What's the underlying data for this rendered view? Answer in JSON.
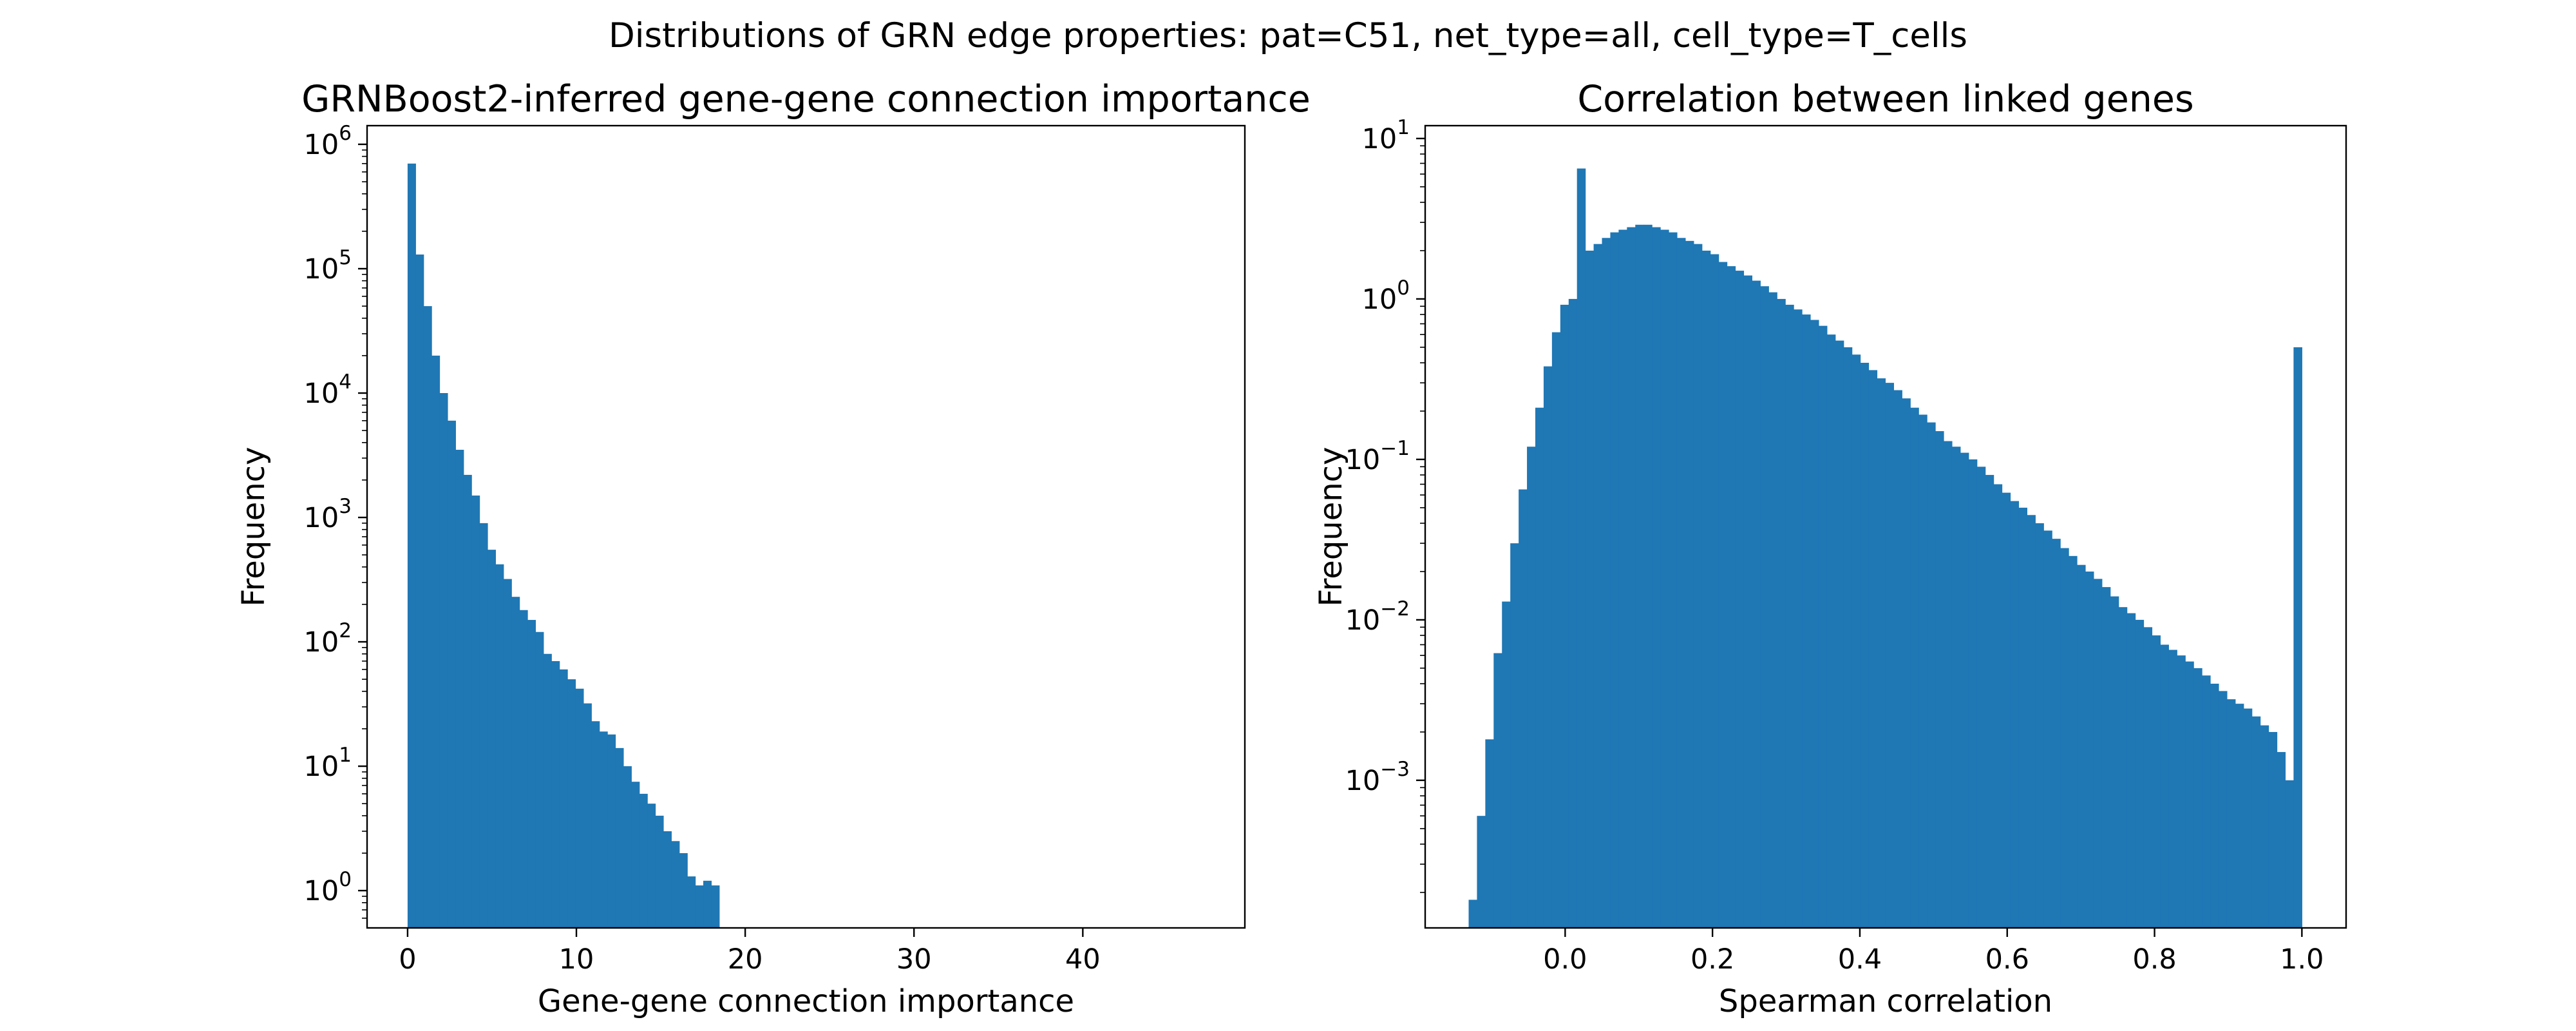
{
  "figure": {
    "suptitle": "Distributions of GRN edge properties: pat=C51, net_type=all, cell_type=T_cells"
  },
  "chart_data": [
    {
      "type": "bar",
      "title": "GRNBoost2-inferred gene-gene connection importance",
      "xlabel": "Gene-gene connection importance",
      "ylabel": "Frequency",
      "yscale": "log",
      "xlim": [
        -2.4,
        49.6
      ],
      "ylim_exponent": [
        -0.3,
        6.15
      ],
      "xticks": [
        {
          "value": 0,
          "label": "0"
        },
        {
          "value": 10,
          "label": "10"
        },
        {
          "value": 20,
          "label": "20"
        },
        {
          "value": 30,
          "label": "30"
        },
        {
          "value": 40,
          "label": "40"
        }
      ],
      "yticks": [
        {
          "exponent": 0,
          "base": "10",
          "sup": "0"
        },
        {
          "exponent": 1,
          "base": "10",
          "sup": "1"
        },
        {
          "exponent": 2,
          "base": "10",
          "sup": "2"
        },
        {
          "exponent": 3,
          "base": "10",
          "sup": "3"
        },
        {
          "exponent": 4,
          "base": "10",
          "sup": "4"
        },
        {
          "exponent": 5,
          "base": "10",
          "sup": "5"
        },
        {
          "exponent": 6,
          "base": "10",
          "sup": "6"
        }
      ],
      "bin_start": 0,
      "bin_width": 0.4734,
      "grid": false,
      "color": "#1f77b4",
      "values": [
        700000,
        130000,
        50000,
        20000,
        10000,
        6000,
        3500,
        2200,
        1500,
        900,
        550,
        420,
        320,
        230,
        180,
        150,
        120,
        80,
        70,
        60,
        50,
        42,
        32,
        23,
        19,
        18,
        14,
        10,
        7.5,
        6,
        5,
        4,
        3,
        2.5,
        2,
        1.3,
        1.1,
        1.2,
        1.1,
        0,
        0,
        0,
        0,
        0,
        0,
        0,
        0,
        0,
        0,
        0,
        0,
        0,
        0,
        0,
        0,
        0,
        0,
        0,
        0,
        0,
        0,
        0,
        0,
        0,
        0,
        0,
        0,
        0,
        0,
        0,
        0,
        0,
        0,
        0,
        0,
        0,
        0,
        0,
        0,
        0,
        0,
        0,
        0,
        0,
        0,
        0,
        0,
        0,
        0,
        0,
        0,
        0,
        0,
        0,
        0,
        0,
        0,
        0,
        0,
        0
      ]
    },
    {
      "type": "bar",
      "title": "Correlation between linked genes",
      "xlabel": "Spearman correlation",
      "ylabel": "Frequency",
      "yscale": "log",
      "xlim": [
        -0.19,
        1.06
      ],
      "ylim_exponent": [
        -3.92,
        1.08
      ],
      "xticks": [
        {
          "value": 0.0,
          "label": "0.0"
        },
        {
          "value": 0.2,
          "label": "0.2"
        },
        {
          "value": 0.4,
          "label": "0.4"
        },
        {
          "value": 0.6,
          "label": "0.6"
        },
        {
          "value": 0.8,
          "label": "0.8"
        },
        {
          "value": 1.0,
          "label": "1.0"
        }
      ],
      "yticks": [
        {
          "exponent": -3,
          "base": "10",
          "sup": "−3"
        },
        {
          "exponent": -2,
          "base": "10",
          "sup": "−2"
        },
        {
          "exponent": -1,
          "base": "10",
          "sup": "−1"
        },
        {
          "exponent": 0,
          "base": "10",
          "sup": "0"
        },
        {
          "exponent": 1,
          "base": "10",
          "sup": "1"
        }
      ],
      "bin_start": -0.131,
      "bin_width": 0.01131,
      "grid": false,
      "color": "#1f77b4",
      "values": [
        0.00018,
        0.0006,
        0.0018,
        0.0062,
        0.013,
        0.03,
        0.065,
        0.12,
        0.21,
        0.38,
        0.62,
        0.92,
        1.0,
        6.5,
        2.0,
        2.2,
        2.4,
        2.6,
        2.7,
        2.8,
        2.9,
        2.9,
        2.8,
        2.7,
        2.6,
        2.4,
        2.3,
        2.2,
        2.0,
        1.9,
        1.7,
        1.6,
        1.5,
        1.4,
        1.3,
        1.2,
        1.1,
        1.0,
        0.92,
        0.86,
        0.8,
        0.74,
        0.68,
        0.6,
        0.55,
        0.5,
        0.45,
        0.4,
        0.36,
        0.32,
        0.3,
        0.27,
        0.24,
        0.21,
        0.19,
        0.17,
        0.15,
        0.13,
        0.12,
        0.11,
        0.1,
        0.09,
        0.08,
        0.07,
        0.062,
        0.055,
        0.05,
        0.045,
        0.04,
        0.036,
        0.032,
        0.028,
        0.025,
        0.022,
        0.02,
        0.018,
        0.016,
        0.014,
        0.012,
        0.011,
        0.01,
        0.009,
        0.008,
        0.007,
        0.0065,
        0.006,
        0.0055,
        0.005,
        0.0045,
        0.004,
        0.0036,
        0.0032,
        0.003,
        0.0028,
        0.0025,
        0.0022,
        0.002,
        0.0015,
        0.001,
        0.5
      ]
    }
  ]
}
